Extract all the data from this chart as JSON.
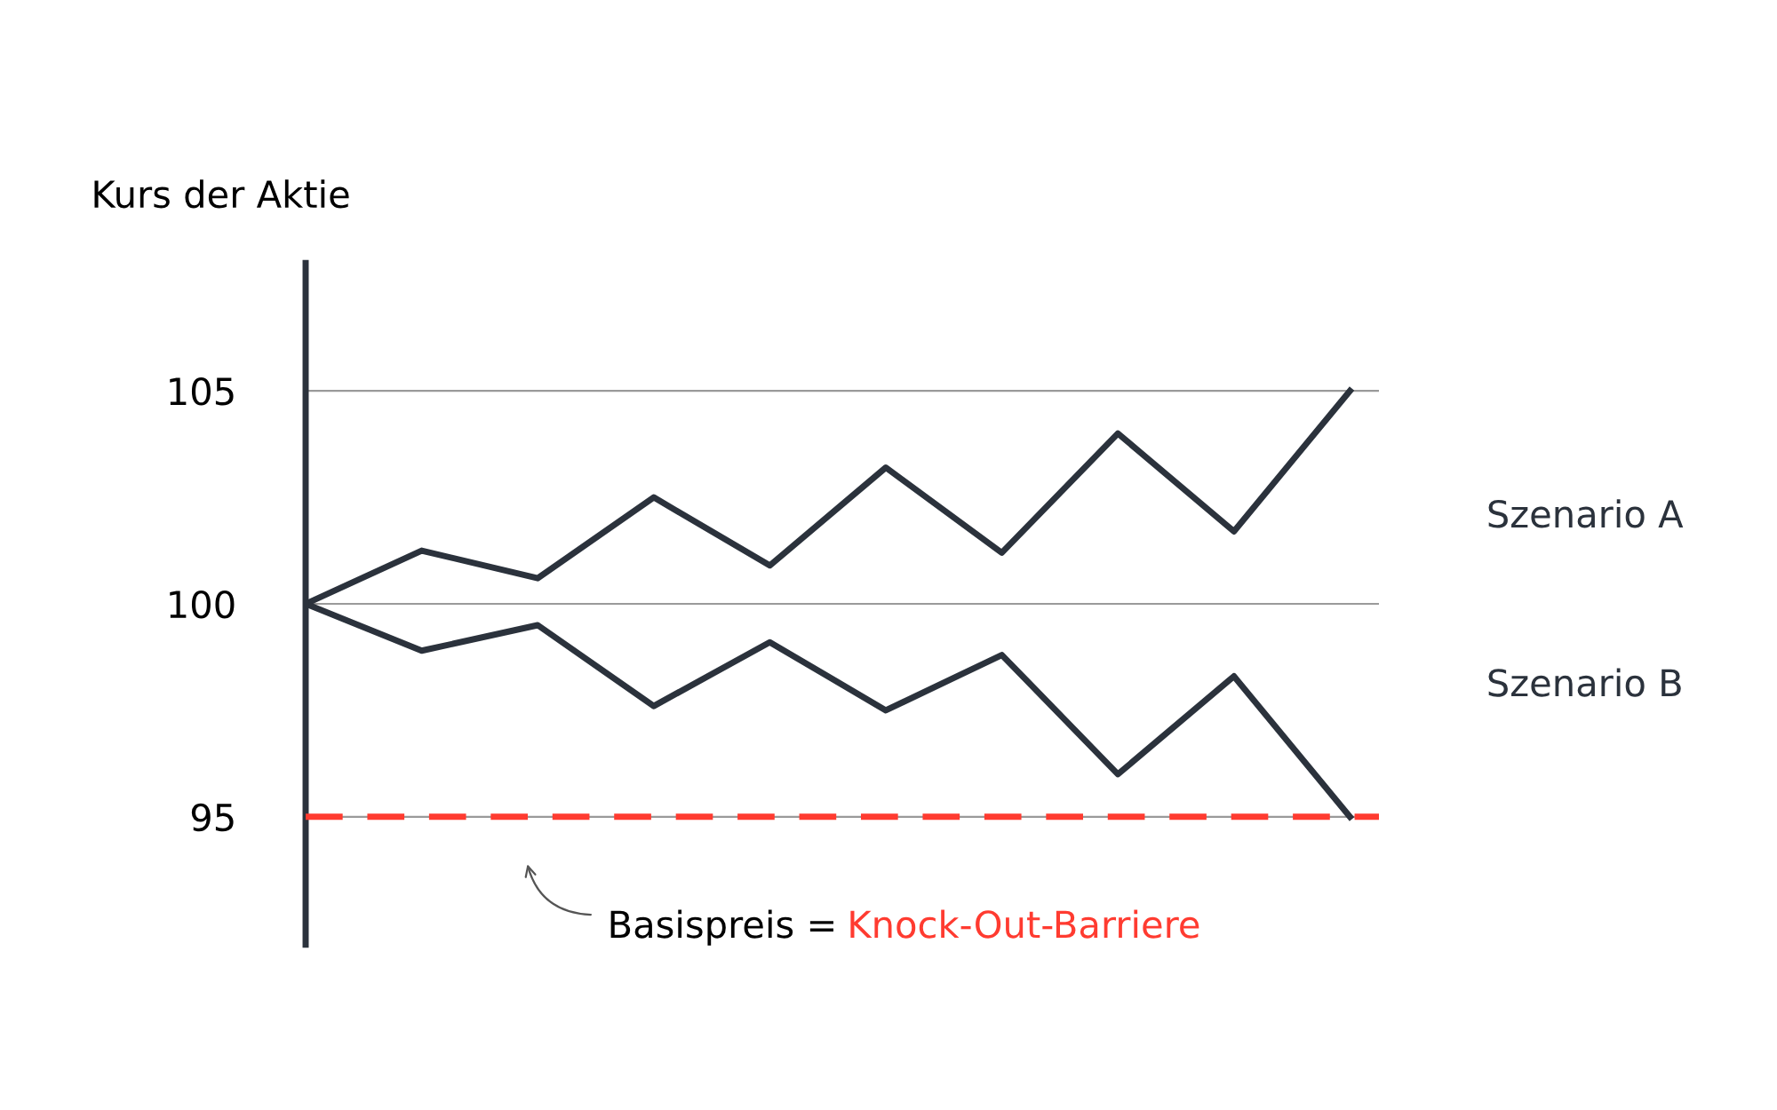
{
  "chart_data": {
    "type": "line",
    "ylabel": "Kurs der Aktie",
    "categories": [
      null,
      null,
      null,
      null,
      null,
      null,
      null,
      null,
      null,
      null
    ],
    "series": [
      {
        "name": "Szenario A",
        "color": "#2b323c",
        "values": [
          100,
          101.25,
          100.6,
          102.5,
          100.9,
          103.2,
          101.2,
          104.0,
          101.7,
          105
        ]
      },
      {
        "name": "Szenario B",
        "color": "#2b323c",
        "values": [
          100,
          98.9,
          99.5,
          97.6,
          99.1,
          97.5,
          98.8,
          96.0,
          98.3,
          95
        ]
      }
    ],
    "ylim": [
      92,
      108
    ],
    "yticks": [
      95,
      100,
      105
    ],
    "tick_labels": "y",
    "grid": "y",
    "legend": false,
    "marker": "none",
    "line_style": "solid",
    "ref_lines": [
      {
        "axis": "y",
        "value": 95,
        "label": "Knock-Out-Barriere",
        "color": "#ff3b30",
        "line_style": "dashed"
      }
    ],
    "annotations": [
      "Basispreis ="
    ]
  }
}
